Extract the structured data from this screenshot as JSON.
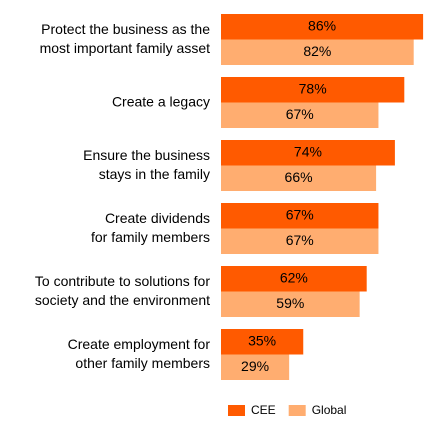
{
  "chart_data": {
    "type": "bar",
    "orientation": "horizontal",
    "categories": [
      "Protect the business as the\nmost important family asset",
      "Create a legacy",
      "Ensure the business\nstays in the family",
      "Create dividends\nfor family members",
      "To contribute to solutions for\nsociety and the environment",
      "Create employment for\nother family members"
    ],
    "series": [
      {
        "name": "CEE",
        "color": "#ff5a00",
        "values": [
          86,
          78,
          74,
          67,
          62,
          35
        ],
        "value_labels": [
          "86%",
          "78%",
          "74%",
          "67%",
          "62%",
          "35%"
        ]
      },
      {
        "name": "Global",
        "color": "#ffad70",
        "values": [
          82,
          67,
          66,
          67,
          59,
          29
        ],
        "value_labels": [
          "82%",
          "67%",
          "66%",
          "67%",
          "59%",
          "29%"
        ]
      }
    ],
    "legend": "bottom"
  }
}
